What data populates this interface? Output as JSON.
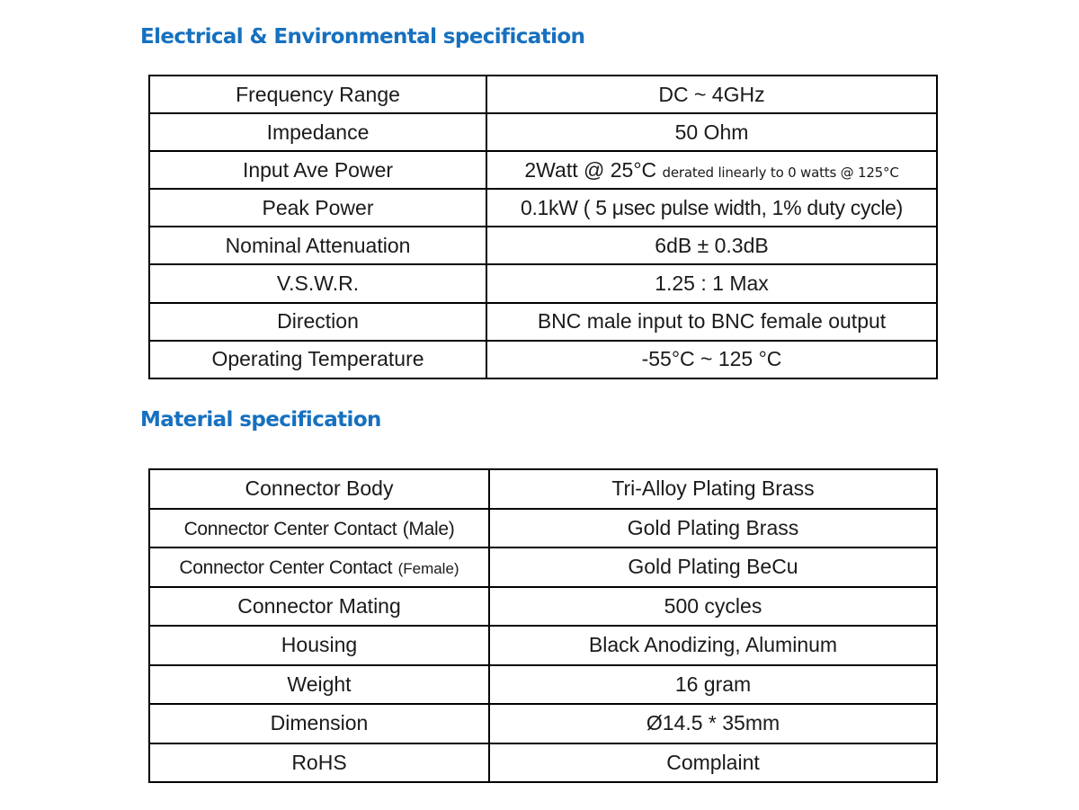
{
  "electrical": {
    "title": "Electrical & Environmental specification",
    "rows": [
      {
        "label": "Frequency Range",
        "value": "DC ~ 4GHz"
      },
      {
        "label": "Impedance",
        "value": "50 Ohm"
      },
      {
        "label": "Input Ave Power",
        "value": "2Watt @ 25°C",
        "note": "derated linearly to 0 watts @ 125°C"
      },
      {
        "label": "Peak Power",
        "value": "0.1kW ( 5 μsec pulse width, 1% duty cycle)"
      },
      {
        "label": "Nominal Attenuation",
        "value": "6dB ± 0.3dB"
      },
      {
        "label": "V.S.W.R.",
        "value": "1.25 : 1 Max"
      },
      {
        "label": "Direction",
        "value": "BNC male input to BNC female output"
      },
      {
        "label": "Operating Temperature",
        "value": "-55°C ~ 125 °C"
      }
    ]
  },
  "material": {
    "title": "Material specification",
    "rows": [
      {
        "label": "Connector Body",
        "value": "Tri-Alloy Plating Brass"
      },
      {
        "label": "Connector Center Contact",
        "qualifier": "(Male)",
        "value": "Gold Plating Brass"
      },
      {
        "label": "Connector Center Contact",
        "qualifier": "(Female)",
        "value": "Gold Plating BeCu"
      },
      {
        "label": "Connector Mating",
        "value": "500 cycles"
      },
      {
        "label": "Housing",
        "value": "Black Anodizing, Aluminum"
      },
      {
        "label": "Weight",
        "value": "16 gram"
      },
      {
        "label": "Dimension",
        "value": "Ø14.5 * 35mm"
      },
      {
        "label": "RoHS",
        "value": "Complaint"
      }
    ]
  }
}
